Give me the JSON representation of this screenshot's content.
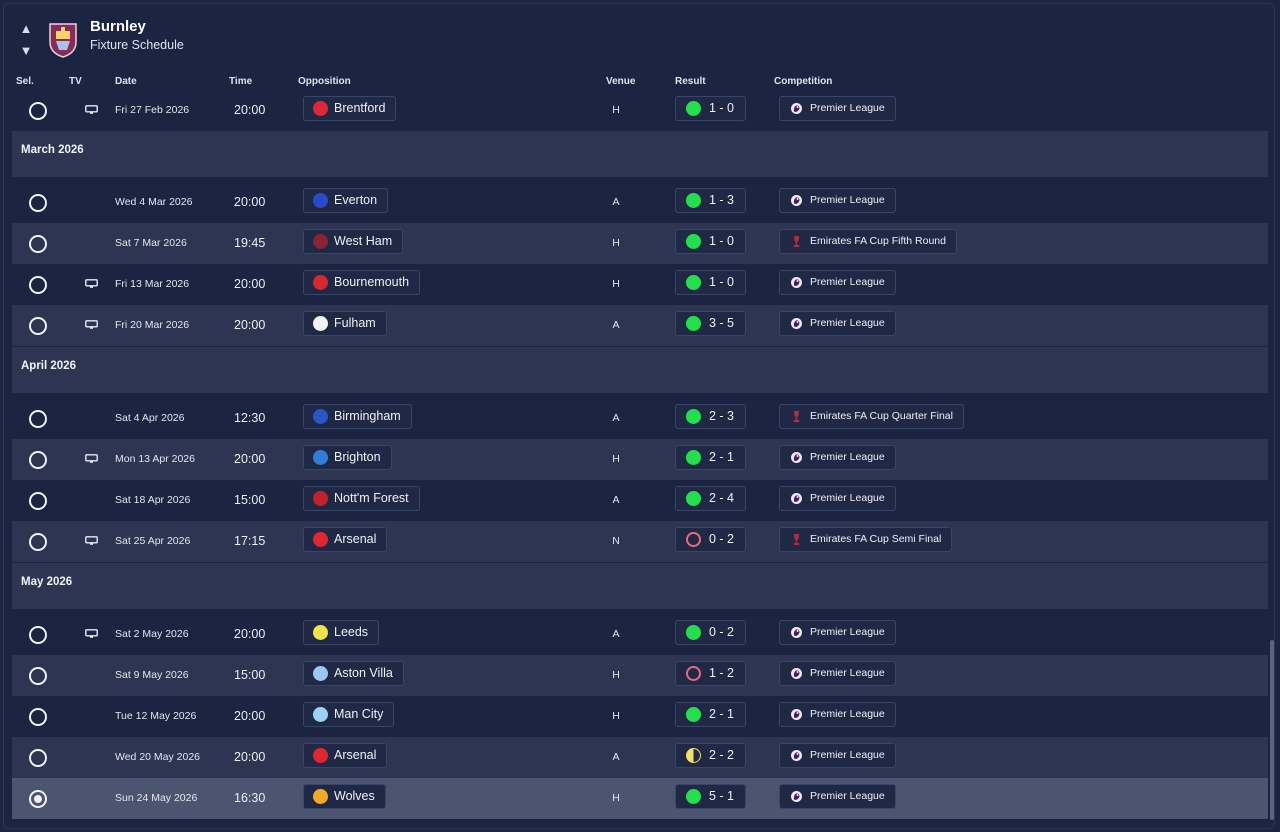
{
  "header": {
    "club": "Burnley",
    "subtitle": "Fixture Schedule",
    "columns": {
      "sel": "Sel.",
      "tv": "TV",
      "date": "Date",
      "time": "Time",
      "opposition": "Opposition",
      "venue": "Venue",
      "result": "Result",
      "competition": "Competition"
    }
  },
  "colors": {
    "win": "#22e04a",
    "loss": "#e86b7c",
    "draw": "#f2e06a",
    "accent": "#8a2a58"
  },
  "rows": [
    {
      "type": "fixture",
      "tv": true,
      "date": "Fri 27 Feb 2026",
      "time": "20:00",
      "opponent": "Brentford",
      "badge": "#e0263a",
      "venue": "H",
      "outcome": "W",
      "score": "1 - 0",
      "comp": "Premier League",
      "comp_icon": "premier-league-icon"
    },
    {
      "type": "month",
      "label": "March 2026"
    },
    {
      "type": "fixture",
      "tv": false,
      "date": "Wed 4 Mar 2026",
      "time": "20:00",
      "opponent": "Everton",
      "badge": "#2a4bc9",
      "venue": "A",
      "outcome": "W",
      "score": "1 - 3",
      "comp": "Premier League",
      "comp_icon": "premier-league-icon"
    },
    {
      "type": "fixture",
      "tv": false,
      "date": "Sat 7 Mar 2026",
      "time": "19:45",
      "opponent": "West Ham",
      "badge": "#8b2334",
      "venue": "H",
      "outcome": "W",
      "score": "1 - 0",
      "comp": "Emirates FA Cup Fifth Round",
      "comp_icon": "fa-cup-icon"
    },
    {
      "type": "fixture",
      "tv": true,
      "date": "Fri 13 Mar 2026",
      "time": "20:00",
      "opponent": "Bournemouth",
      "badge": "#d8282e",
      "venue": "H",
      "outcome": "W",
      "score": "1 - 0",
      "comp": "Premier League",
      "comp_icon": "premier-league-icon"
    },
    {
      "type": "fixture",
      "tv": true,
      "date": "Fri 20 Mar 2026",
      "time": "20:00",
      "opponent": "Fulham",
      "badge": "#f4f4f4",
      "venue": "A",
      "outcome": "W",
      "score": "3 - 5",
      "comp": "Premier League",
      "comp_icon": "premier-league-icon"
    },
    {
      "type": "month",
      "label": "April 2026"
    },
    {
      "type": "fixture",
      "tv": false,
      "date": "Sat 4 Apr 2026",
      "time": "12:30",
      "opponent": "Birmingham",
      "badge": "#2a55c6",
      "venue": "A",
      "outcome": "W",
      "score": "2 - 3",
      "comp": "Emirates FA Cup Quarter Final",
      "comp_icon": "fa-cup-icon"
    },
    {
      "type": "fixture",
      "tv": true,
      "date": "Mon 13 Apr 2026",
      "time": "20:00",
      "opponent": "Brighton",
      "badge": "#2f7fd8",
      "venue": "H",
      "outcome": "W",
      "score": "2 - 1",
      "comp": "Premier League",
      "comp_icon": "premier-league-icon"
    },
    {
      "type": "fixture",
      "tv": false,
      "date": "Sat 18 Apr 2026",
      "time": "15:00",
      "opponent": "Nott'm Forest",
      "badge": "#c2222e",
      "venue": "A",
      "outcome": "W",
      "score": "2 - 4",
      "comp": "Premier League",
      "comp_icon": "premier-league-icon"
    },
    {
      "type": "fixture",
      "tv": true,
      "date": "Sat 25 Apr 2026",
      "time": "17:15",
      "opponent": "Arsenal",
      "badge": "#e3262e",
      "venue": "N",
      "outcome": "L",
      "score": "0 - 2",
      "comp": "Emirates FA Cup Semi Final",
      "comp_icon": "fa-cup-icon"
    },
    {
      "type": "month",
      "label": "May 2026"
    },
    {
      "type": "fixture",
      "tv": true,
      "date": "Sat 2 May 2026",
      "time": "20:00",
      "opponent": "Leeds",
      "badge": "#f2e14a",
      "venue": "A",
      "outcome": "W",
      "score": "0 - 2",
      "comp": "Premier League",
      "comp_icon": "premier-league-icon"
    },
    {
      "type": "fixture",
      "tv": false,
      "date": "Sat 9 May 2026",
      "time": "15:00",
      "opponent": "Aston Villa",
      "badge": "#9cc8f0",
      "venue": "H",
      "outcome": "L",
      "score": "1 - 2",
      "comp": "Premier League",
      "comp_icon": "premier-league-icon"
    },
    {
      "type": "fixture",
      "tv": false,
      "date": "Tue 12 May 2026",
      "time": "20:00",
      "opponent": "Man City",
      "badge": "#9dd0f5",
      "venue": "H",
      "outcome": "W",
      "score": "2 - 1",
      "comp": "Premier League",
      "comp_icon": "premier-league-icon"
    },
    {
      "type": "fixture",
      "tv": false,
      "date": "Wed 20 May 2026",
      "time": "20:00",
      "opponent": "Arsenal",
      "badge": "#e3262e",
      "venue": "A",
      "outcome": "D",
      "score": "2 - 2",
      "comp": "Premier League",
      "comp_icon": "premier-league-icon"
    },
    {
      "type": "fixture",
      "tv": false,
      "date": "Sun 24 May 2026",
      "time": "16:30",
      "opponent": "Wolves",
      "badge": "#f2a92a",
      "venue": "H",
      "outcome": "W",
      "score": "5 - 1",
      "comp": "Premier League",
      "comp_icon": "premier-league-icon",
      "selected": true
    }
  ]
}
